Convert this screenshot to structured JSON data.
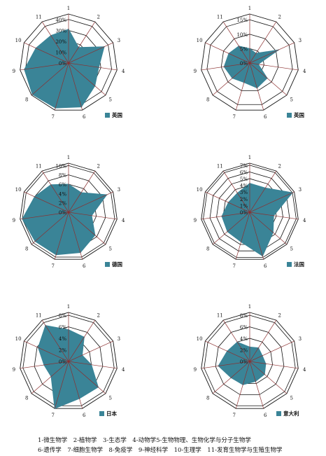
{
  "axis_labels": [
    "1",
    "2",
    "3",
    "4",
    "5",
    "6",
    "7",
    "8",
    "9",
    "10",
    "11"
  ],
  "legend_text": [
    "1-微生物学　2-植物学　3-生态学　4-动物学5-生物物理、生物化学与分子生物学",
    "6-遗传学　7-细胞生物学　8-免疫学　9-神经科学　10-生理学　11-发育生物学与生殖生物学"
  ],
  "colors": {
    "fill": "#3a8497",
    "grid": "#111111",
    "spoke": "#8b2f2f"
  },
  "chart_data": [
    {
      "type": "radar",
      "name": "英国",
      "rmax": 45,
      "ticks": [
        0,
        10,
        20,
        30,
        40
      ],
      "tick_labels": [
        "0%",
        "10%",
        "20%",
        "30%",
        "40%"
      ],
      "values": [
        31,
        17,
        36,
        28,
        32,
        42,
        43,
        44,
        41,
        33,
        30
      ]
    },
    {
      "type": "radar",
      "name": "英国",
      "rmax": 17,
      "ticks": [
        0,
        5,
        10,
        15
      ],
      "tick_labels": [
        "0%",
        "5%",
        "10%",
        "15%"
      ],
      "values": [
        5,
        4,
        11,
        3,
        8,
        9,
        7,
        8,
        9,
        8,
        7
      ]
    },
    {
      "type": "radar",
      "name": "德国",
      "rmax": 10.5,
      "ticks": [
        0,
        2,
        4,
        6,
        8,
        10
      ],
      "tick_labels": [
        "0%",
        "2%",
        "4%",
        "6%",
        "8%",
        "10%"
      ],
      "values": [
        6,
        5,
        9,
        5,
        7.5,
        9,
        9.5,
        9.5,
        10,
        8,
        7
      ]
    },
    {
      "type": "radar",
      "name": "法国",
      "rmax": 7.3,
      "ticks": [
        0,
        1,
        2,
        3,
        4,
        5,
        6,
        7
      ],
      "tick_labels": [
        "0%",
        "1%",
        "2%",
        "3%",
        "4%",
        "5%",
        "6%",
        "7%"
      ],
      "values": [
        4.3,
        4.3,
        7,
        3.6,
        4.6,
        6.8,
        4.6,
        4.4,
        4.2,
        3.5,
        3.4
      ]
    },
    {
      "type": "radar",
      "name": "日本",
      "rmax": 8.5,
      "ticks": [
        0,
        2,
        4,
        6,
        8
      ],
      "tick_labels": [
        "0%",
        "2%",
        "4%",
        "6%",
        "8%"
      ],
      "values": [
        5.5,
        5,
        2.6,
        4,
        6.8,
        6.7,
        8.5,
        4,
        4.3,
        5.8,
        7.4
      ]
    },
    {
      "type": "radar",
      "name": "意大利",
      "rmax": 8.5,
      "ticks": [
        0,
        2,
        4,
        6,
        8
      ],
      "tick_labels": [
        "0%",
        "2%",
        "4%",
        "6%",
        "8%"
      ],
      "values": [
        2.5,
        2.8,
        2.4,
        2.8,
        3.4,
        3.6,
        4.2,
        4.3,
        5.5,
        4.3,
        4
      ]
    }
  ]
}
